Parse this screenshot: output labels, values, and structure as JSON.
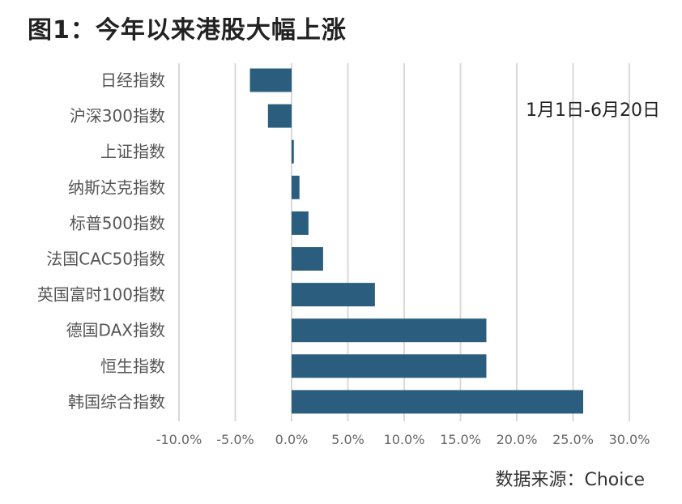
{
  "title": "图1：今年以来港股大幅上涨",
  "chart_data": {
    "type": "bar",
    "orientation": "horizontal",
    "annotation": "1月1日-6月20日",
    "source": "数据来源：Choice",
    "categories": [
      "日经指数",
      "沪深300指数",
      "上证指数",
      "纳斯达克指数",
      "标普500指数",
      "法国CAC50指数",
      "英国富时100指数",
      "德国DAX指数",
      "恒生指数",
      "韩国综合指数"
    ],
    "values": [
      -3.7,
      -2.1,
      0.2,
      0.7,
      1.5,
      2.8,
      7.4,
      17.3,
      17.3,
      25.9
    ],
    "x_ticks": [
      -10,
      -5,
      0,
      5,
      10,
      15,
      20,
      25,
      30
    ],
    "x_tick_labels": [
      "-10.0%",
      "-5.0%",
      "0.0%",
      "5.0%",
      "10.0%",
      "15.0%",
      "20.0%",
      "25.0%",
      "30.0%"
    ],
    "xlim": [
      -10,
      30
    ],
    "grid": true,
    "bar_color": "#2b5e7e",
    "grid_color": "#d9d9d9"
  }
}
